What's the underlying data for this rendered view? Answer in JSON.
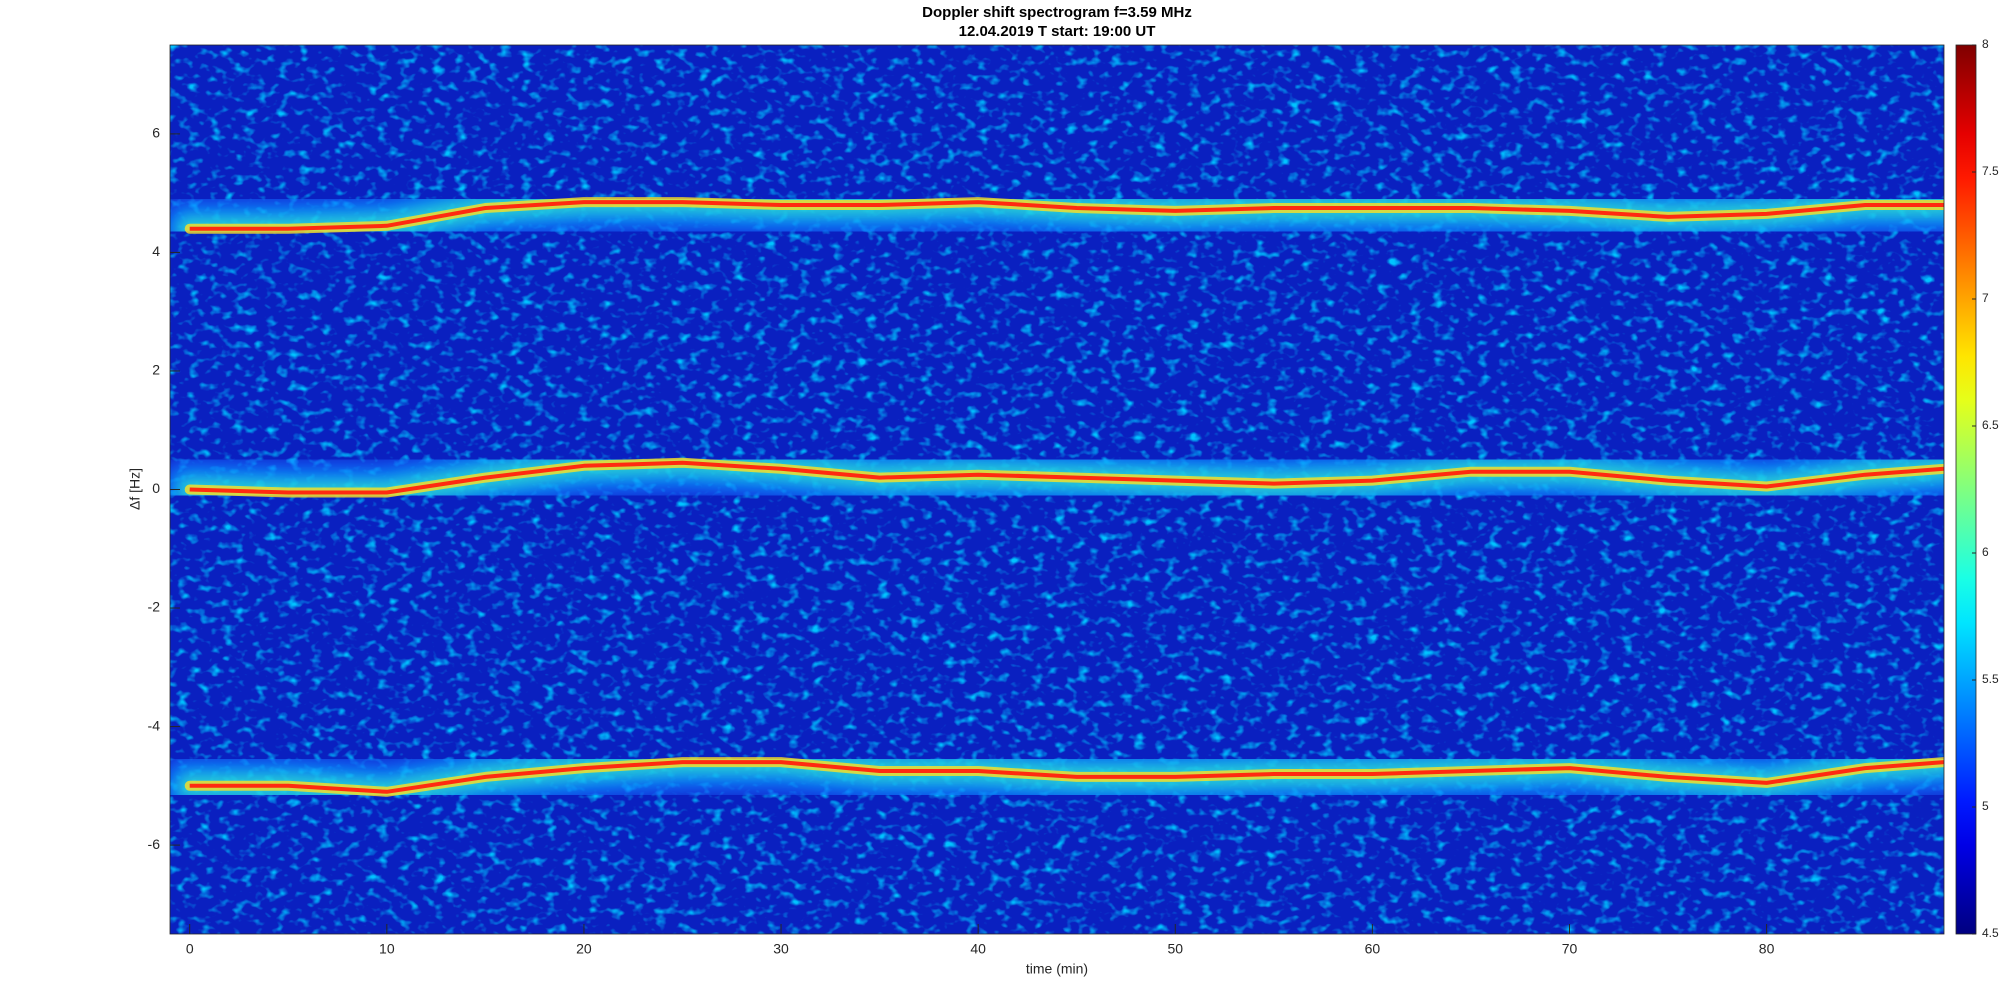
{
  "chart_data": {
    "type": "spectrogram",
    "title": "Doppler shift spectrogram f=3.59 MHz",
    "subtitle": "12.04.2019   T start: 19:00 UT",
    "x_label": "time (min)",
    "y_label": "Δf [Hz]",
    "xlim": [
      -1,
      89
    ],
    "xticks": [
      0,
      10,
      20,
      30,
      40,
      50,
      60,
      70,
      80
    ],
    "ylim": [
      -7.5,
      7.5
    ],
    "yticks": [
      -6,
      -4,
      -2,
      0,
      2,
      4,
      6
    ],
    "background_color": "#0a20c0",
    "x": [
      0,
      5,
      10,
      15,
      20,
      25,
      30,
      35,
      40,
      45,
      50,
      55,
      60,
      65,
      70,
      75,
      80,
      85,
      89
    ],
    "series": [
      {
        "color": "#ff2a10",
        "values": [
          4.4,
          4.4,
          4.45,
          4.75,
          4.85,
          4.85,
          4.8,
          4.8,
          4.85,
          4.75,
          4.7,
          4.75,
          4.75,
          4.75,
          4.7,
          4.6,
          4.65,
          4.8,
          4.8
        ]
      },
      {
        "color": "#ff2a10",
        "values": [
          0,
          -0.05,
          -0.05,
          0.2,
          0.4,
          0.45,
          0.35,
          0.2,
          0.25,
          0.2,
          0.15,
          0.1,
          0.15,
          0.3,
          0.3,
          0.15,
          0.05,
          0.25,
          0.35
        ]
      },
      {
        "color": "#ff2a10",
        "values": [
          -5,
          -5,
          -5.1,
          -4.85,
          -4.7,
          -4.6,
          -4.6,
          -4.75,
          -4.75,
          -4.85,
          -4.85,
          -4.8,
          -4.8,
          -4.75,
          -4.7,
          -4.85,
          -4.95,
          -4.7,
          -4.6
        ]
      }
    ],
    "colorbar": {
      "colormap": "jet",
      "lim": [
        4.5,
        8
      ],
      "ticks": [
        4.5,
        5,
        5.5,
        6,
        6.5,
        7,
        7.5,
        8
      ]
    }
  }
}
